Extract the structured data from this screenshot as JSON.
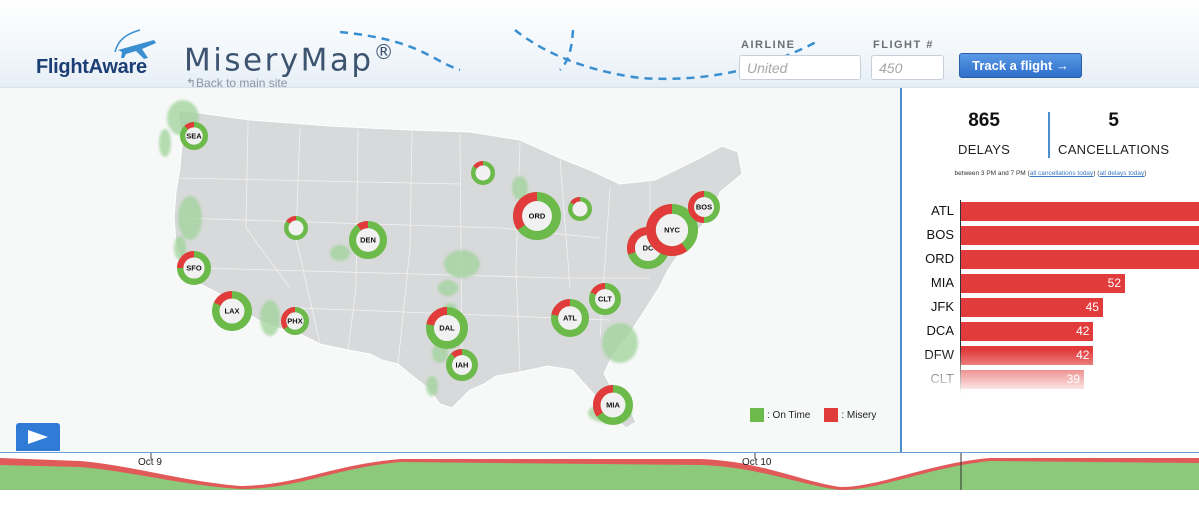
{
  "header": {
    "logo_text": "FlightAware",
    "app_title": "MiseryMap",
    "app_title_mark": "®",
    "back_link": "↰Back to main site",
    "airline_label": "AIRLINE",
    "airline_placeholder": "United",
    "flight_label": "FLIGHT #",
    "flight_placeholder": "450",
    "track_button": "Track a flight →"
  },
  "map": {
    "airports": [
      {
        "code": "SEA",
        "misery": 0.12
      },
      {
        "code": "SFO",
        "misery": 0.25
      },
      {
        "code": "LAX",
        "misery": 0.18
      },
      {
        "code": "PHX",
        "misery": 0.35
      },
      {
        "code": "DEN",
        "misery": 0.1
      },
      {
        "code": "DAL",
        "misery": 0.22
      },
      {
        "code": "IAH",
        "misery": 0.12
      },
      {
        "code": "ORD",
        "misery": 0.35
      },
      {
        "code": "ATL",
        "misery": 0.22
      },
      {
        "code": "CLT",
        "misery": 0.18
      },
      {
        "code": "MIA",
        "misery": 0.35
      },
      {
        "code": "DC",
        "misery": 0.3
      },
      {
        "code": "NYC",
        "misery": 0.6
      },
      {
        "code": "BOS",
        "misery": 0.5
      }
    ],
    "legend": {
      "on_time_label": ": On Time",
      "misery_label": ": Misery",
      "on_time_color": "#6cba4a",
      "misery_color": "#e23b3b"
    },
    "play_icon": "play-icon"
  },
  "stats": {
    "delays_value": "865",
    "delays_label": "DELAYS",
    "cancellations_value": "5",
    "cancellations_label": "CANCELLATIONS",
    "time_note_prefix": "between 3 PM and 7 PM (",
    "all_cancellations_link": "all cancellations today",
    "time_note_mid": ") (",
    "all_delays_link": "all delays today",
    "time_note_suffix": ")"
  },
  "delay_bars": {
    "max_value": 52,
    "items": [
      {
        "code": "ATL",
        "value": null,
        "fraction": 1.6
      },
      {
        "code": "BOS",
        "value": null,
        "fraction": 1.6
      },
      {
        "code": "ORD",
        "value": null,
        "fraction": 1.6
      },
      {
        "code": "MIA",
        "value": 52
      },
      {
        "code": "JFK",
        "value": 45
      },
      {
        "code": "DCA",
        "value": 42
      },
      {
        "code": "DFW",
        "value": 42
      },
      {
        "code": "CLT",
        "value": 39
      }
    ]
  },
  "timeline": {
    "labels": [
      "Oct 9",
      "Oct 10"
    ]
  }
}
